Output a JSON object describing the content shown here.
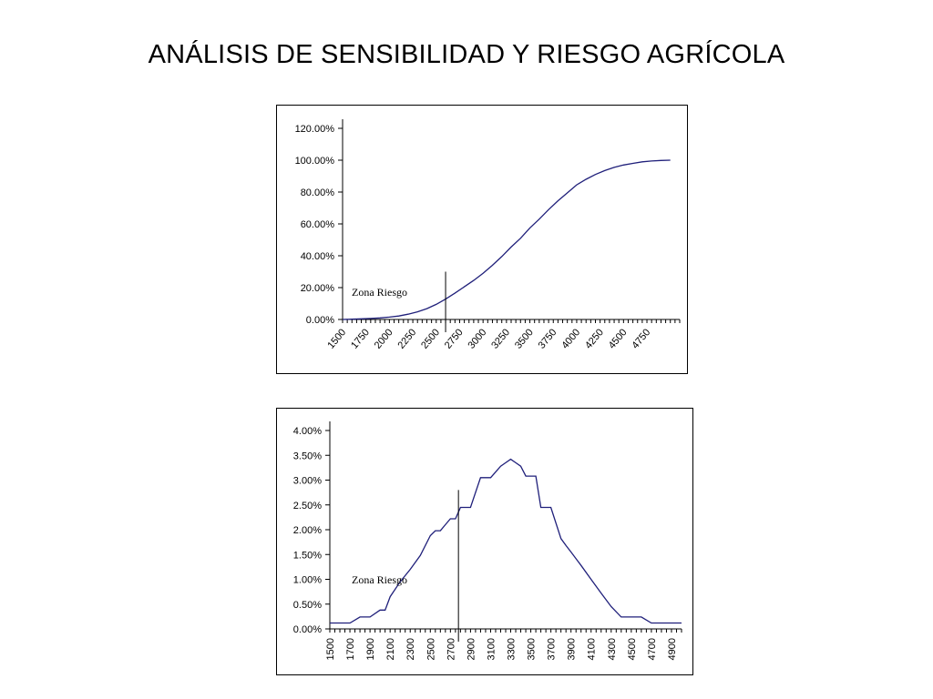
{
  "slide": {
    "title": "ANÁLISIS DE SENSIBILIDAD Y RIESGO AGRÍCOLA"
  },
  "chart_data": [
    {
      "type": "line",
      "title": "",
      "xlabel": "",
      "ylabel": "",
      "line_color": "#1f1f7a",
      "x_tick_labels": [
        "1500",
        "1750",
        "2000",
        "2250",
        "2500",
        "2750",
        "3000",
        "3250",
        "3500",
        "3750",
        "4000",
        "4250",
        "4500",
        "4750"
      ],
      "y_tick_labels": [
        "0.00%",
        "20.00%",
        "40.00%",
        "60.00%",
        "80.00%",
        "100.00%",
        "120.00%"
      ],
      "ylim": [
        0,
        1.2
      ],
      "xlim": [
        1500,
        5100
      ],
      "grid": false,
      "legend": "none",
      "annotation": {
        "text": "Zona Riesgo",
        "x": 2600,
        "y_top": 0.3
      },
      "series": [
        {
          "x": [
            1500,
            1600,
            1700,
            1800,
            1900,
            2000,
            2100,
            2200,
            2300,
            2400,
            2500,
            2600,
            2700,
            2800,
            2900,
            3000,
            3100,
            3200,
            3300,
            3400,
            3500,
            3600,
            3700,
            3800,
            3900,
            4000,
            4100,
            4200,
            4300,
            4400,
            4500,
            4600,
            4700,
            4800,
            4900,
            5000
          ],
          "y": [
            0.0,
            0.002,
            0.004,
            0.006,
            0.01,
            0.015,
            0.022,
            0.033,
            0.048,
            0.068,
            0.095,
            0.128,
            0.165,
            0.205,
            0.245,
            0.29,
            0.34,
            0.395,
            0.455,
            0.51,
            0.575,
            0.63,
            0.69,
            0.745,
            0.795,
            0.845,
            0.88,
            0.91,
            0.935,
            0.955,
            0.97,
            0.98,
            0.99,
            0.995,
            0.998,
            1.0
          ]
        }
      ]
    },
    {
      "type": "line",
      "title": "",
      "xlabel": "",
      "ylabel": "",
      "line_color": "#1f1f7a",
      "x_tick_labels": [
        "1500",
        "1700",
        "1900",
        "2100",
        "2300",
        "2500",
        "2700",
        "2900",
        "3100",
        "3300",
        "3500",
        "3700",
        "3900",
        "4100",
        "4300",
        "4500",
        "4700",
        "4900"
      ],
      "y_tick_labels": [
        "0.00%",
        "0.50%",
        "1.00%",
        "1.50%",
        "2.00%",
        "2.50%",
        "3.00%",
        "3.50%",
        "4.00%"
      ],
      "ylim": [
        0,
        0.04
      ],
      "xlim": [
        1500,
        5000
      ],
      "grid": false,
      "legend": "none",
      "annotation": {
        "text": "Zona Riesgo",
        "x": 2780,
        "y_top": 0.028
      },
      "series": [
        {
          "x": [
            1500,
            1600,
            1700,
            1800,
            1900,
            2000,
            2050,
            2100,
            2200,
            2300,
            2400,
            2500,
            2550,
            2600,
            2650,
            2700,
            2750,
            2800,
            2900,
            3000,
            3050,
            3100,
            3200,
            3250,
            3300,
            3350,
            3400,
            3450,
            3500,
            3550,
            3600,
            3700,
            3800,
            3850,
            3900,
            4000,
            4100,
            4200,
            4300,
            4400,
            4500,
            4600,
            4700,
            4750,
            4800,
            4900,
            5000
          ],
          "y": [
            0.0012,
            0.0012,
            0.0012,
            0.0024,
            0.0024,
            0.0038,
            0.0038,
            0.0065,
            0.0095,
            0.012,
            0.0148,
            0.0188,
            0.0198,
            0.0198,
            0.021,
            0.0222,
            0.0222,
            0.0245,
            0.0245,
            0.0305,
            0.0305,
            0.0305,
            0.0328,
            0.0335,
            0.0342,
            0.0335,
            0.0328,
            0.0308,
            0.0308,
            0.0308,
            0.0245,
            0.0245,
            0.0182,
            0.0168,
            0.0155,
            0.0128,
            0.01,
            0.0072,
            0.0045,
            0.0024,
            0.0024,
            0.0024,
            0.0012,
            0.0012,
            0.0012,
            0.0012,
            0.0012
          ]
        }
      ]
    }
  ]
}
